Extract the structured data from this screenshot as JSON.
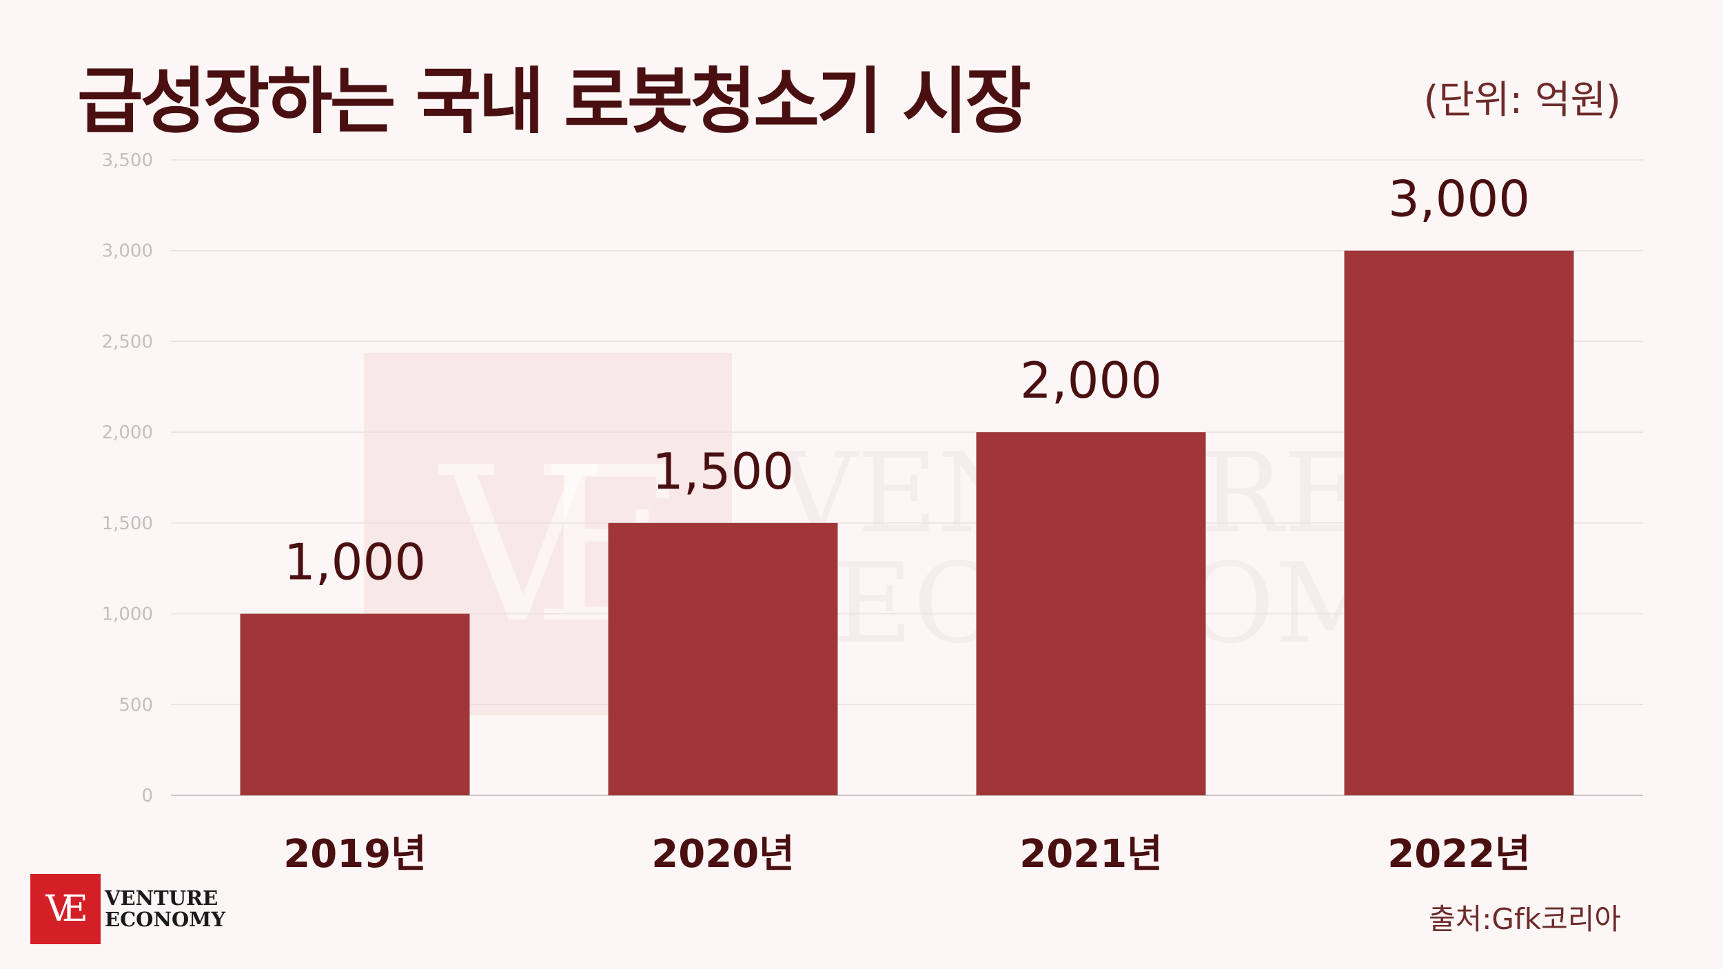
{
  "title": "급성장하는 국내 로봇청소기 시장",
  "unit_note": "(단위: 억원)",
  "source": "출처:Gfk코리아",
  "logo": {
    "mark": "VE",
    "line1": "VENTURE",
    "line2": "ECONOMY"
  },
  "watermark": {
    "mark": "VE",
    "line1": "VENTURE",
    "line2": "ECONOMY"
  },
  "colors": {
    "bar": "#a13639",
    "title": "#4a0f10",
    "axis_text": "#c7bcbc",
    "grid": "#e9e0df",
    "value_label": "#4a0f10",
    "category_label": "#4a0f10",
    "logo": "#d51f26"
  },
  "chart_data": {
    "type": "bar",
    "categories": [
      "2019년",
      "2020년",
      "2021년",
      "2022년"
    ],
    "values": [
      1000,
      1500,
      2000,
      3000
    ],
    "value_labels": [
      "1,000",
      "1,500",
      "2,000",
      "3,000"
    ],
    "ylim": [
      0,
      3500
    ],
    "yticks": [
      0,
      500,
      1000,
      1500,
      2000,
      2500,
      3000,
      3500
    ],
    "ytick_labels": [
      "0",
      "500",
      "1,000",
      "1,500",
      "2,000",
      "2,500",
      "3,000",
      "3,500"
    ],
    "grid": true,
    "legend": "none"
  }
}
